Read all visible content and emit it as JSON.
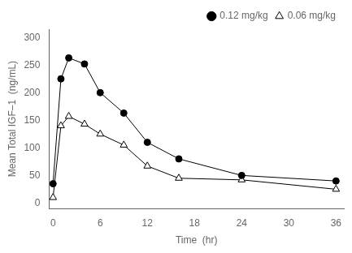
{
  "chart_data": {
    "type": "line",
    "xlabel": "Time  (hr)",
    "ylabel": "Mean Total IGF–1  (ng/mL)",
    "x": [
      0,
      1,
      2,
      4,
      6,
      9,
      12,
      16,
      24,
      36
    ],
    "series": [
      {
        "name": "0.12 mg/kg",
        "color": "#000000",
        "marker": "circle",
        "values": [
          35,
          225,
          263,
          252,
          200,
          163,
          110,
          80,
          50,
          40
        ]
      },
      {
        "name": "0.06 mg/kg",
        "color": "#000000",
        "marker": "open-triangle",
        "values": [
          10,
          140,
          157,
          143,
          125,
          105,
          67,
          45,
          42,
          25
        ]
      }
    ],
    "xlim": [
      -0.5,
      37
    ],
    "ylim": [
      -10,
      315
    ],
    "xticks": [
      0,
      6,
      12,
      18,
      24,
      30,
      36
    ],
    "yticks": [
      0,
      50,
      100,
      150,
      200,
      250,
      300
    ],
    "grid": false,
    "legend": "upper right"
  }
}
